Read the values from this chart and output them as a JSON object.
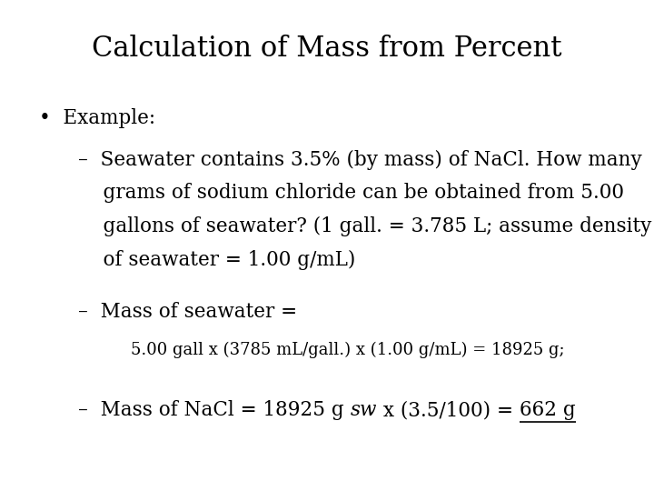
{
  "title": "Calculation of Mass from Percent",
  "background_color": "#ffffff",
  "text_color": "#000000",
  "title_fontsize": 22,
  "body_fontsize": 15.5,
  "small_fontsize": 13,
  "font_family": "DejaVu Serif",
  "bullet": "•  Example:",
  "dash1_line1": "–  Seawater contains 3.5% (by mass) of NaCl. How many",
  "dash1_line2": "    grams of sodium chloride can be obtained from 5.00",
  "dash1_line3": "    gallons of seawater? (1 gall. = 3.785 L; assume density",
  "dash1_line4": "    of seawater = 1.00 g/mL)",
  "dash2_label": "–  Mass of seawater =",
  "calc_line": "5.00 gall x (3785 mL/gall.) x (1.00 g/mL) = 18925 g;",
  "dash3_prefix": "–  Mass of NaCl = 18925 g ",
  "dash3_italic": "sw",
  "dash3_middle": " x (3.5/100) = ",
  "dash3_underline": "662 g"
}
